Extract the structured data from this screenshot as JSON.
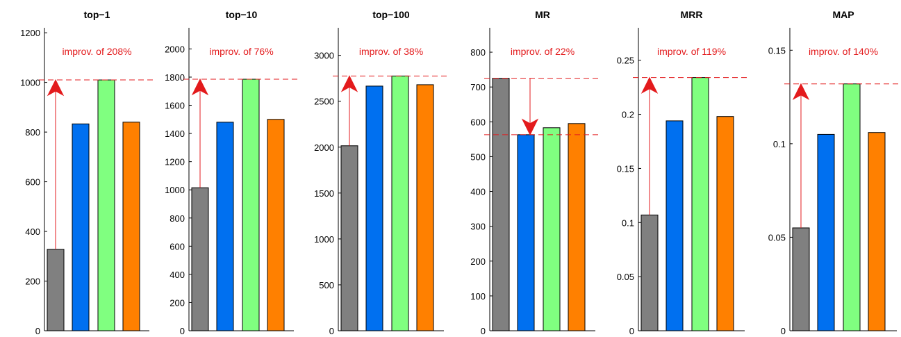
{
  "colors": {
    "bars": [
      "#808080",
      "#0070f0",
      "#80ff80",
      "#ff8000"
    ],
    "annotation": "#e31a1c",
    "axis": "#000000"
  },
  "chart_data": [
    {
      "type": "bar",
      "title": "top−1",
      "values": [
        328,
        833,
        1010,
        840
      ],
      "ylim": [
        0,
        1220
      ],
      "yticks": [
        0,
        200,
        400,
        600,
        800,
        1000,
        1200
      ],
      "ytick_labels": [
        "0",
        "200",
        "400",
        "600",
        "800",
        "1000",
        "1200"
      ],
      "annotation": "improv. of 208%",
      "arrow": "up",
      "reference_lines": [
        1010
      ]
    },
    {
      "type": "bar",
      "title": "top−10",
      "values": [
        1015,
        1480,
        1785,
        1500
      ],
      "ylim": [
        0,
        2150
      ],
      "yticks": [
        0,
        200,
        400,
        600,
        800,
        1000,
        1200,
        1400,
        1600,
        1800,
        2000
      ],
      "ytick_labels": [
        "0",
        "200",
        "400",
        "600",
        "800",
        "1000",
        "1200",
        "1400",
        "1600",
        "1800",
        "2000"
      ],
      "annotation": "improv. of 76%",
      "arrow": "up",
      "reference_lines": [
        1785
      ]
    },
    {
      "type": "bar",
      "title": "top−100",
      "values": [
        2015,
        2665,
        2775,
        2680
      ],
      "ylim": [
        0,
        3300
      ],
      "yticks": [
        0,
        500,
        1000,
        1500,
        2000,
        2500,
        3000
      ],
      "ytick_labels": [
        "0",
        "500",
        "1000",
        "1500",
        "2000",
        "2500",
        "3000"
      ],
      "annotation": "improv. of 38%",
      "arrow": "up",
      "reference_lines": [
        2775
      ]
    },
    {
      "type": "bar",
      "title": "MR",
      "values": [
        725,
        563,
        583,
        595
      ],
      "ylim": [
        0,
        870
      ],
      "yticks": [
        0,
        100,
        200,
        300,
        400,
        500,
        600,
        700,
        800
      ],
      "ytick_labels": [
        "0",
        "100",
        "200",
        "300",
        "400",
        "500",
        "600",
        "700",
        "800"
      ],
      "annotation": "improv. of 22%",
      "arrow": "down",
      "reference_lines": [
        725,
        563
      ]
    },
    {
      "type": "bar",
      "title": "MRR",
      "values": [
        0.107,
        0.194,
        0.234,
        0.198
      ],
      "ylim": [
        0,
        0.28
      ],
      "yticks": [
        0,
        0.05,
        0.1,
        0.15,
        0.2,
        0.25
      ],
      "ytick_labels": [
        "0",
        "0.05",
        "0.1",
        "0.15",
        "0.2",
        "0.25"
      ],
      "annotation": "improv. of 119%",
      "arrow": "up",
      "reference_lines": [
        0.234
      ]
    },
    {
      "type": "bar",
      "title": "MAP",
      "values": [
        0.055,
        0.105,
        0.132,
        0.106
      ],
      "ylim": [
        0,
        0.162
      ],
      "yticks": [
        0,
        0.05,
        0.1,
        0.15
      ],
      "ytick_labels": [
        "0",
        "0.05",
        "0.1",
        "0.15"
      ],
      "annotation": "improv. of 140%",
      "arrow": "up",
      "reference_lines": [
        0.132
      ]
    }
  ]
}
